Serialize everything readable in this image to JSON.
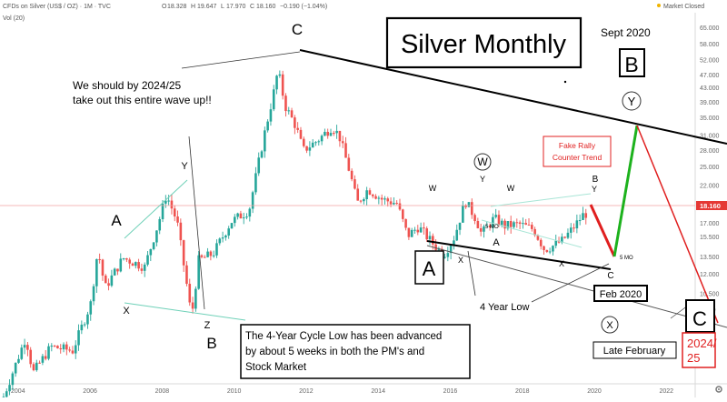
{
  "header": {
    "symbol_title": "CFDs on Silver (US$ / OZ) · 1M · TVC",
    "ohlc": [
      {
        "label": "O",
        "value": "18.328"
      },
      {
        "label": "H",
        "value": "19.647"
      },
      {
        "label": "L",
        "value": "17.970"
      },
      {
        "label": "C",
        "value": "18.160"
      }
    ],
    "change": "−0.190 (−1.04%)",
    "volume_label": "Vol (20)",
    "market_status": "Market Closed"
  },
  "price_tag": "18.160",
  "colors": {
    "up": "#26a69a",
    "down": "#ef5350",
    "trendline": "#000000",
    "projection_up": "#1db21d",
    "projection_down": "#e01f1f",
    "annotation_red": "#e02020"
  },
  "chart_data": {
    "type": "candlestick",
    "title": "Silver Monthly",
    "y_scale": "log",
    "ylim": [
      5.8,
      72
    ],
    "xlim": [
      2003.5,
      2022.8
    ],
    "x_ticks": [
      "2004",
      "2006",
      "2008",
      "2010",
      "2012",
      "2014",
      "2016",
      "2018",
      "2020",
      "2022"
    ],
    "y_ticks": [
      "65.000",
      "58.000",
      "52.000",
      "47.000",
      "43.000",
      "39.000",
      "35.000",
      "31.000",
      "28.000",
      "25.000",
      "22.000",
      "19.000",
      "17.000",
      "15.500",
      "13.500",
      "12.000",
      "10.500",
      "9.400",
      "8.500",
      "7.700",
      "6.900"
    ],
    "price_path": [
      [
        2003.6,
        4.9
      ],
      [
        2004.3,
        7.8
      ],
      [
        2004.5,
        6.1
      ],
      [
        2005.0,
        7.3
      ],
      [
        2005.6,
        7.1
      ],
      [
        2006.1,
        9.8
      ],
      [
        2006.3,
        14.2
      ],
      [
        2006.5,
        10.9
      ],
      [
        2007.0,
        13.4
      ],
      [
        2007.6,
        12.6
      ],
      [
        2008.0,
        17.3
      ],
      [
        2008.2,
        20.7
      ],
      [
        2008.5,
        17.2
      ],
      [
        2008.8,
        10.6
      ],
      [
        2008.9,
        8.9
      ],
      [
        2009.1,
        13.2
      ],
      [
        2009.5,
        13.8
      ],
      [
        2010.0,
        17.2
      ],
      [
        2010.5,
        18.6
      ],
      [
        2010.9,
        30.5
      ],
      [
        2011.2,
        42.5
      ],
      [
        2011.3,
        48.6
      ],
      [
        2011.5,
        38.0
      ],
      [
        2011.8,
        33.0
      ],
      [
        2012.0,
        28.0
      ],
      [
        2012.4,
        30.0
      ],
      [
        2012.8,
        33.0
      ],
      [
        2013.0,
        31.0
      ],
      [
        2013.3,
        24.0
      ],
      [
        2013.5,
        19.5
      ],
      [
        2013.8,
        21.5
      ],
      [
        2014.2,
        20.0
      ],
      [
        2014.6,
        19.5
      ],
      [
        2014.9,
        15.6
      ],
      [
        2015.2,
        16.6
      ],
      [
        2015.6,
        14.8
      ],
      [
        2015.9,
        13.7
      ],
      [
        2016.2,
        15.5
      ],
      [
        2016.5,
        19.8
      ],
      [
        2016.8,
        17.5
      ],
      [
        2016.95,
        15.8
      ],
      [
        2017.3,
        17.6
      ],
      [
        2017.6,
        16.7
      ],
      [
        2018.0,
        16.9
      ],
      [
        2018.4,
        16.3
      ],
      [
        2018.7,
        14.2
      ],
      [
        2018.9,
        14.5
      ],
      [
        2019.2,
        15.1
      ],
      [
        2019.5,
        16.5
      ],
      [
        2019.7,
        17.6
      ],
      [
        2019.8,
        18.16
      ]
    ],
    "volume_label": "Vol (20)"
  },
  "annotations": {
    "title": "Silver Monthly",
    "sept_2020": "Sept 2020",
    "label_c_top": "C",
    "box_b": "B",
    "circle_y": "Y",
    "circle_w": "W",
    "circle_x": "X",
    "label_a_left": "A",
    "label_x_left": "X",
    "label_y_left": "Y",
    "label_b_bottom": "B",
    "label_z": "Z",
    "box_a": "A",
    "box_c": "C",
    "note_text": "We should by 2024/25\ntake out this entire wave up!!",
    "cycle_box_text": "The 4-Year Cycle Low has been advanced\nby about 5 weeks in both the PM's and\nStock Market",
    "fake_rally": "Fake Rally\nCounter Trend",
    "four_year_low": "4 Year Low",
    "feb_2020": "Feb 2020",
    "late_february": "Late February",
    "year_2024_25": "2024/\n25",
    "label_w1": "W",
    "label_y2": "Y",
    "label_w3": "W",
    "label_x_mid": "X",
    "label_a_mid": "A",
    "label_x_low": "X",
    "label_b_right": "B",
    "label_y_right": "Y",
    "label_5mo_mid": "5 MO",
    "label_5mo_right": "5 MO",
    "label_c_small": "C"
  }
}
